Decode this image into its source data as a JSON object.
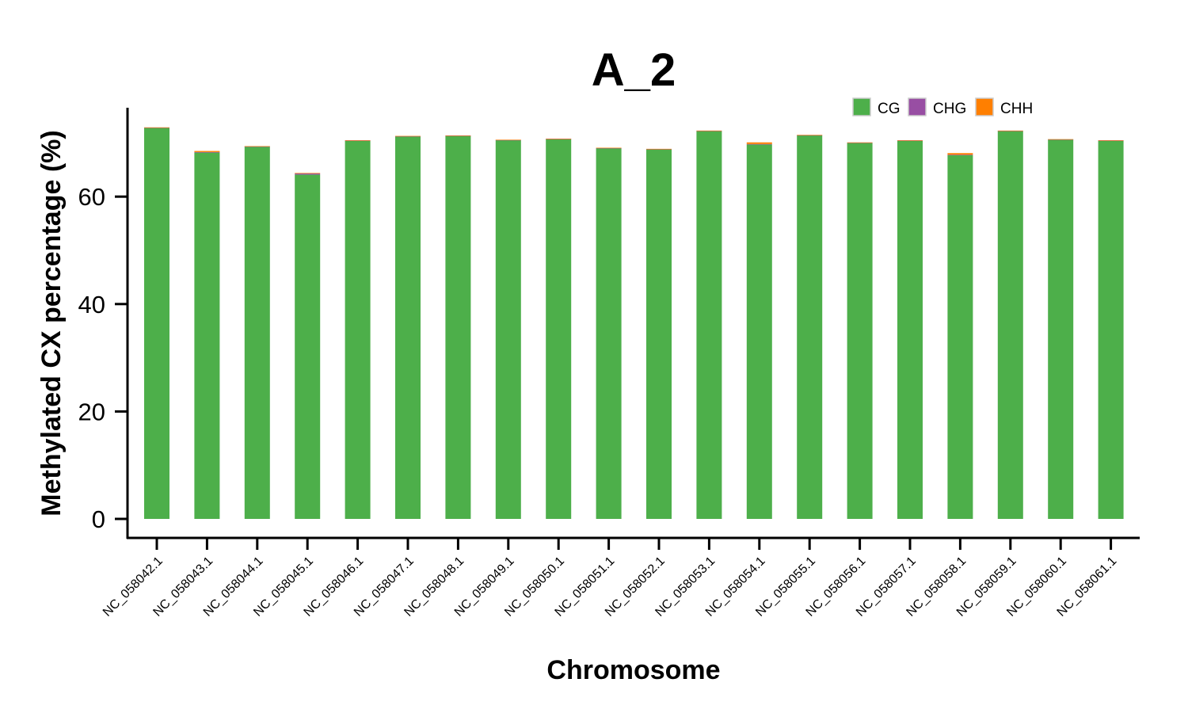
{
  "chart_data": {
    "type": "bar",
    "stacked": true,
    "title": "A_2",
    "xlabel": "Chromosome",
    "ylabel": "Methylated CX percentage (%)",
    "ylim": [
      0,
      76
    ],
    "yticks": [
      0,
      20,
      40,
      60
    ],
    "grid": false,
    "legend_position": "top-right",
    "categories": [
      "NC_058042.1",
      "NC_058043.1",
      "NC_058044.1",
      "NC_058045.1",
      "NC_058046.1",
      "NC_058047.1",
      "NC_058048.1",
      "NC_058049.1",
      "NC_058050.1",
      "NC_058051.1",
      "NC_058052.1",
      "NC_058053.1",
      "NC_058054.1",
      "NC_058055.1",
      "NC_058056.1",
      "NC_058057.1",
      "NC_058058.1",
      "NC_058059.1",
      "NC_058060.1",
      "NC_058061.1"
    ],
    "series": [
      {
        "name": "CG",
        "color": "#4daf4a",
        "values": [
          72.8,
          68.2,
          69.3,
          64.1,
          70.4,
          71.2,
          71.3,
          70.5,
          70.7,
          69.0,
          68.8,
          72.2,
          69.7,
          71.4,
          70.0,
          70.4,
          67.7,
          72.2,
          70.6,
          70.4
        ]
      },
      {
        "name": "CHG",
        "color": "#984ea3",
        "values": [
          0.05,
          0.1,
          0.05,
          0.2,
          0.05,
          0.05,
          0.05,
          0.05,
          0.05,
          0.05,
          0.05,
          0.05,
          0.1,
          0.05,
          0.05,
          0.05,
          0.1,
          0.05,
          0.05,
          0.05
        ]
      },
      {
        "name": "CHH",
        "color": "#ff7f00",
        "values": [
          0.05,
          0.2,
          0.05,
          0.1,
          0.05,
          0.05,
          0.05,
          0.05,
          0.05,
          0.05,
          0.05,
          0.05,
          0.3,
          0.05,
          0.05,
          0.05,
          0.3,
          0.05,
          0.05,
          0.05
        ]
      }
    ]
  }
}
